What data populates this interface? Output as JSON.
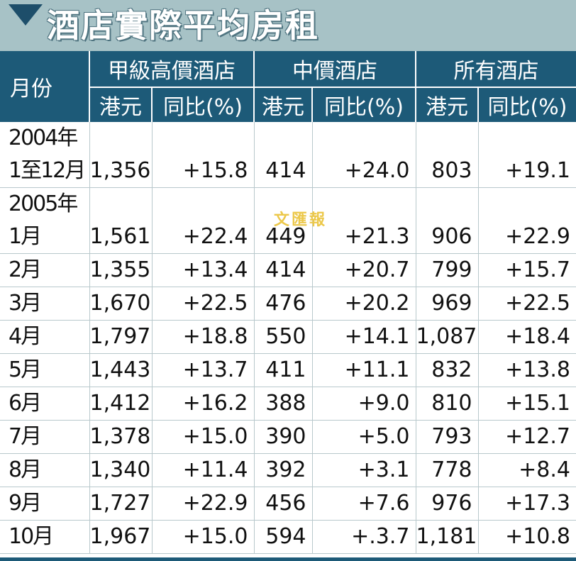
{
  "title": "酒店實際平均房租",
  "watermark": "文匯報",
  "header": {
    "month": "月份",
    "groups": [
      "甲級高價酒店",
      "中價酒店",
      "所有酒店"
    ],
    "sub_hkd": "港元",
    "sub_yoy": "同比(%)"
  },
  "chart_data": {
    "type": "table",
    "title": "酒店實際平均房租",
    "columns": [
      "月份",
      "甲級高價酒店 港元",
      "甲級高價酒店 同比(%)",
      "中價酒店 港元",
      "中價酒店 同比(%)",
      "所有酒店 港元",
      "所有酒店 同比(%)"
    ],
    "year_labels": [
      "2004年",
      "2005年"
    ],
    "rows": [
      [
        "1至12月",
        "1,356",
        "+15.8",
        "414",
        "+24.0",
        "803",
        "+19.1"
      ],
      [
        "1月",
        "1,561",
        "+22.4",
        "449",
        "+21.3",
        "906",
        "+22.9"
      ],
      [
        "2月",
        "1,355",
        "+13.4",
        "414",
        "+20.7",
        "799",
        "+15.7"
      ],
      [
        "3月",
        "1,670",
        "+22.5",
        "476",
        "+20.2",
        "969",
        "+22.5"
      ],
      [
        "4月",
        "1,797",
        "+18.8",
        "550",
        "+14.1",
        "1,087",
        "+18.4"
      ],
      [
        "5月",
        "1,443",
        "+13.7",
        "411",
        "+11.1",
        "832",
        "+13.8"
      ],
      [
        "6月",
        "1,412",
        "+16.2",
        "388",
        "+9.0",
        "810",
        "+15.1"
      ],
      [
        "7月",
        "1,378",
        "+15.0",
        "390",
        "+5.0",
        "793",
        "+12.7"
      ],
      [
        "8月",
        "1,340",
        "+11.4",
        "392",
        "+3.1",
        "778",
        "+8.4"
      ],
      [
        "9月",
        "1,727",
        "+22.9",
        "456",
        "+7.6",
        "976",
        "+17.3"
      ],
      [
        "10月",
        "1,967",
        "+15.0",
        "594",
        "+.3.7",
        "1,181",
        "+10.8"
      ]
    ]
  },
  "colors": {
    "header_bg": "#1d5a78",
    "title_bg": "#a7c2c6",
    "accent": "#1d4e6a"
  }
}
